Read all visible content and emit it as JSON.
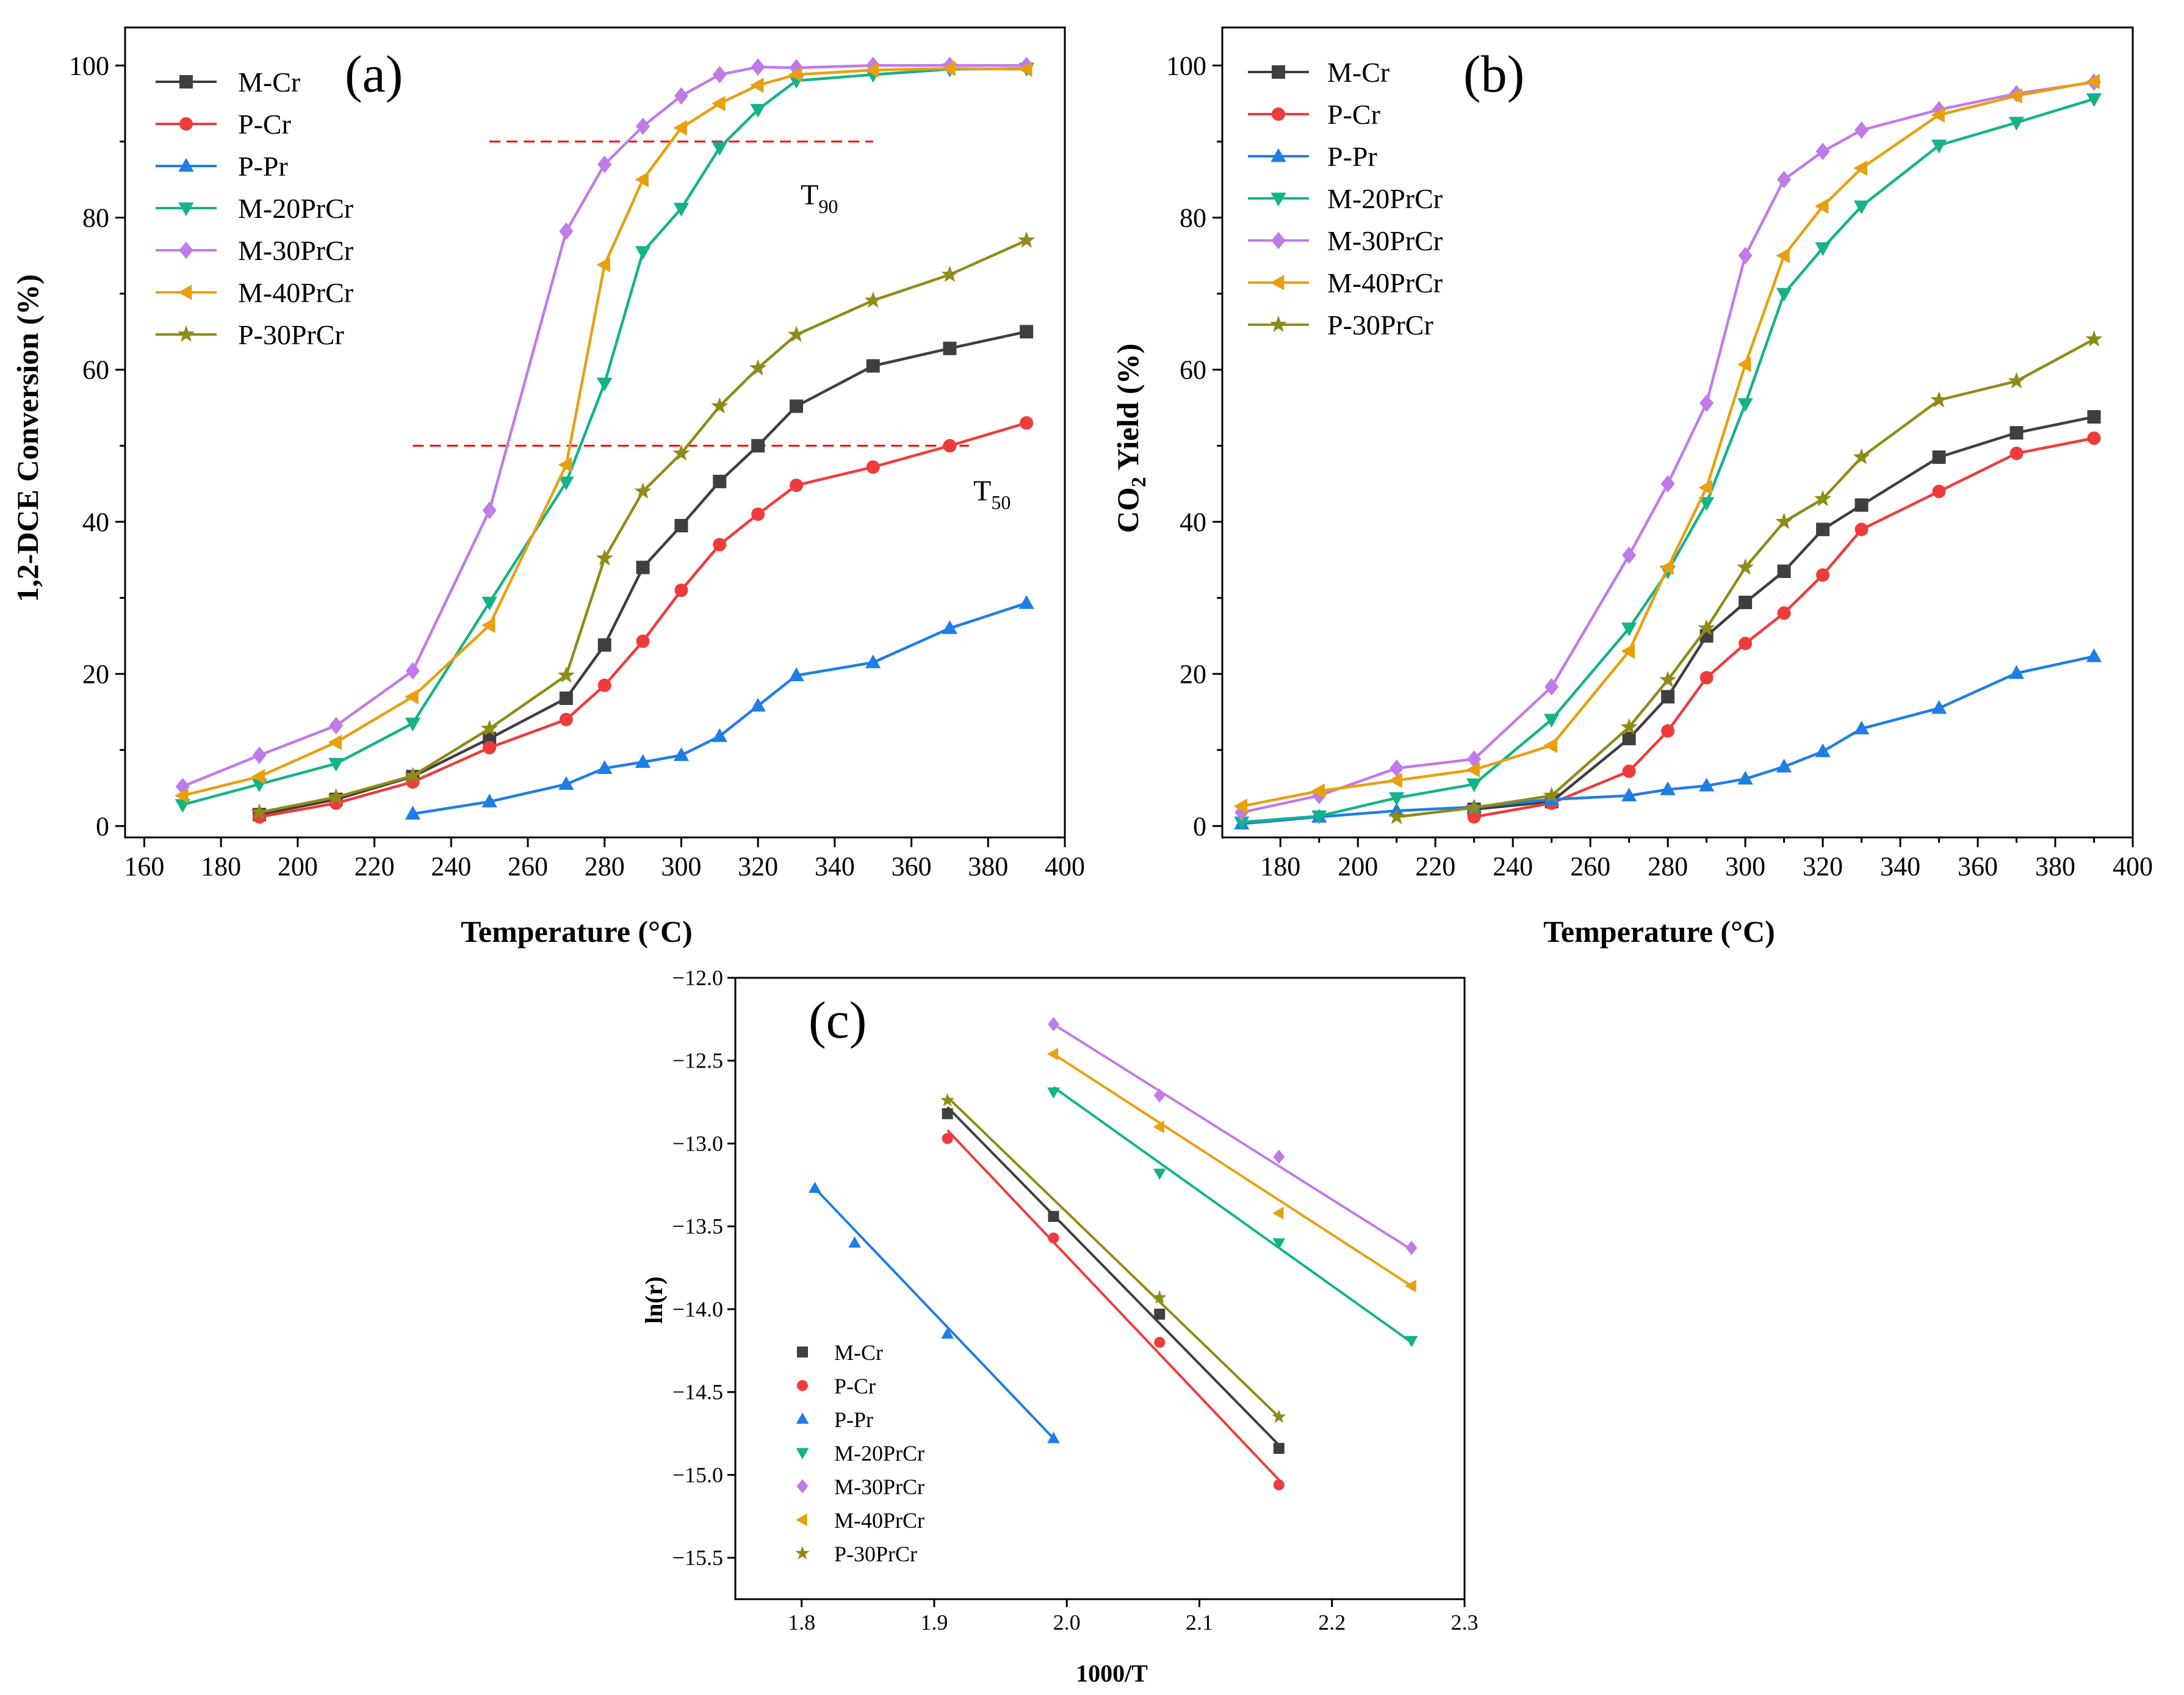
{
  "colors": {
    "M-Cr": "#3f3f3f",
    "P-Cr": "#ef3b3b",
    "P-Pr": "#1f7de6",
    "M-20PrCr": "#13b38a",
    "M-30PrCr": "#c07be8",
    "M-40PrCr": "#e8a010",
    "P-30PrCr": "#8f8b17",
    "threshold_line": "#ff0000"
  },
  "markers": {
    "M-Cr": "square",
    "P-Cr": "circle",
    "P-Pr": "triangle-up",
    "M-20PrCr": "triangle-down",
    "M-30PrCr": "diamond",
    "M-40PrCr": "triangle-left",
    "P-30PrCr": "star"
  },
  "chart_data": [
    {
      "id": "a",
      "type": "line",
      "panel_label": "(a)",
      "xlabel": "Temperature (°C)",
      "ylabel": "1,2-DCE Conversion (%)",
      "xlim": [
        155,
        400
      ],
      "ylim": [
        -1.5,
        105
      ],
      "xticks": [
        160,
        180,
        200,
        220,
        240,
        260,
        280,
        300,
        320,
        340,
        360,
        380,
        400
      ],
      "yticks": [
        0,
        20,
        40,
        60,
        80,
        100
      ],
      "legend_position": "top-left",
      "annotations": [
        {
          "text": "T",
          "sub": "90",
          "x": 295,
          "y": 83
        },
        {
          "text": "T",
          "sub": "50",
          "x": 375,
          "y": 42
        }
      ],
      "reference_lines": [
        {
          "y": 90,
          "x_range": [
            250,
            350
          ],
          "style": "dashed"
        },
        {
          "y": 50,
          "x_range": [
            230,
            375
          ],
          "style": "dashed"
        }
      ],
      "series": [
        {
          "name": "M-Cr",
          "x": [
            190,
            210,
            230,
            250,
            270,
            280,
            290,
            300,
            310,
            320,
            330,
            350,
            370,
            390
          ],
          "y": [
            1.5,
            3.5,
            6.5,
            11.5,
            16.8,
            23.8,
            34,
            39.5,
            45.3,
            50,
            55.2,
            60.5,
            62.8,
            65
          ]
        },
        {
          "name": "P-Cr",
          "x": [
            190,
            210,
            230,
            250,
            270,
            280,
            290,
            300,
            310,
            320,
            330,
            350,
            370,
            390
          ],
          "y": [
            1.2,
            3,
            5.8,
            10.3,
            14,
            18.5,
            24.3,
            31,
            37,
            41,
            44.8,
            47.2,
            50,
            53
          ]
        },
        {
          "name": "P-Pr",
          "x": [
            230,
            250,
            270,
            280,
            290,
            300,
            310,
            320,
            330,
            350,
            370,
            390
          ],
          "y": [
            1.6,
            3.2,
            5.5,
            7.6,
            8.4,
            9.3,
            11.8,
            15.8,
            19.8,
            21.5,
            26,
            29.3
          ]
        },
        {
          "name": "M-20PrCr",
          "x": [
            170,
            190,
            210,
            230,
            250,
            270,
            280,
            290,
            300,
            310,
            320,
            330,
            350,
            370,
            390
          ],
          "y": [
            2.8,
            5.5,
            8.2,
            13.5,
            29.4,
            45.2,
            58.2,
            75.5,
            81.2,
            89.2,
            94.2,
            98,
            98.8,
            99.5,
            99.6
          ]
        },
        {
          "name": "M-30PrCr",
          "x": [
            170,
            190,
            210,
            230,
            250,
            270,
            280,
            290,
            300,
            310,
            320,
            330,
            350,
            370,
            390
          ],
          "y": [
            5.2,
            9.3,
            13.2,
            20.4,
            41.5,
            78.2,
            87,
            92,
            96,
            98.8,
            99.8,
            99.7,
            100,
            100,
            100
          ]
        },
        {
          "name": "M-40PrCr",
          "x": [
            170,
            190,
            210,
            230,
            250,
            270,
            280,
            290,
            300,
            310,
            320,
            330,
            350,
            370,
            390
          ],
          "y": [
            4,
            6.5,
            11,
            17,
            26.4,
            47.5,
            73.8,
            85,
            91.8,
            95,
            97.4,
            98.8,
            99.4,
            99.6,
            99.5
          ]
        },
        {
          "name": "P-30PrCr",
          "x": [
            190,
            210,
            230,
            250,
            270,
            280,
            290,
            300,
            310,
            320,
            330,
            350,
            370,
            390
          ],
          "y": [
            1.8,
            3.8,
            6.6,
            12.8,
            19.8,
            35.2,
            44,
            49,
            55.2,
            60.2,
            64.6,
            69.1,
            72.5,
            77
          ]
        }
      ]
    },
    {
      "id": "b",
      "type": "line",
      "panel_label": "(b)",
      "xlabel": "Temperature (°C)",
      "ylabel_main": "CO",
      "ylabel_sub": "2",
      "ylabel_rest": " Yield (%)",
      "xlim": [
        165,
        400
      ],
      "ylim": [
        -1.5,
        105
      ],
      "xticks": [
        180,
        200,
        220,
        240,
        260,
        280,
        300,
        320,
        340,
        360,
        380,
        400
      ],
      "yticks": [
        0,
        20,
        40,
        60,
        80,
        100
      ],
      "legend_position": "top-left",
      "series": [
        {
          "name": "M-Cr",
          "x": [
            230,
            250,
            270,
            280,
            290,
            300,
            310,
            320,
            330,
            350,
            370,
            390
          ],
          "y": [
            2.2,
            3.2,
            11.5,
            17,
            25,
            29.4,
            33.5,
            39,
            42.2,
            48.5,
            51.7,
            53.8
          ]
        },
        {
          "name": "P-Cr",
          "x": [
            230,
            250,
            270,
            280,
            290,
            300,
            310,
            320,
            330,
            350,
            370,
            390
          ],
          "y": [
            1.2,
            3,
            7.2,
            12.5,
            19.5,
            24,
            28,
            33,
            39,
            44,
            49,
            51
          ]
        },
        {
          "name": "P-Pr",
          "x": [
            170,
            190,
            210,
            230,
            250,
            270,
            280,
            290,
            300,
            310,
            320,
            330,
            350,
            370,
            390
          ],
          "y": [
            0.3,
            1.2,
            2,
            2.5,
            3.5,
            4,
            4.8,
            5.3,
            6.2,
            7.8,
            9.8,
            12.8,
            15.5,
            20.1,
            22.3
          ]
        },
        {
          "name": "M-20PrCr",
          "x": [
            170,
            190,
            210,
            230,
            250,
            270,
            280,
            290,
            300,
            310,
            320,
            330,
            350,
            370,
            390
          ],
          "y": [
            0.5,
            1.3,
            3.7,
            5.5,
            14,
            26,
            33.5,
            42.5,
            55.5,
            70,
            76,
            81.5,
            89.5,
            92.5,
            95.6
          ]
        },
        {
          "name": "M-30PrCr",
          "x": [
            170,
            190,
            210,
            230,
            250,
            270,
            280,
            290,
            300,
            310,
            320,
            330,
            350,
            370,
            390
          ],
          "y": [
            1.8,
            4,
            7.6,
            8.8,
            18.3,
            35.6,
            45,
            55.6,
            75,
            85,
            88.7,
            91.5,
            94.2,
            96.3,
            97.8
          ]
        },
        {
          "name": "M-40PrCr",
          "x": [
            170,
            190,
            210,
            230,
            250,
            270,
            280,
            290,
            300,
            310,
            320,
            330,
            350,
            370,
            390
          ],
          "y": [
            2.6,
            4.6,
            6,
            7.4,
            10.6,
            23,
            34,
            44.5,
            60.7,
            75,
            81.5,
            86.5,
            93.5,
            96,
            97.9
          ]
        },
        {
          "name": "P-30PrCr",
          "x": [
            210,
            230,
            250,
            270,
            280,
            290,
            300,
            310,
            320,
            330,
            350,
            370,
            390
          ],
          "y": [
            1.2,
            2.4,
            4,
            13,
            19.2,
            26,
            34,
            40,
            43,
            48.5,
            56,
            58.5,
            64
          ]
        }
      ]
    },
    {
      "id": "c",
      "type": "scatter",
      "panel_label": "(c)",
      "xlabel": "1000/T",
      "ylabel": "ln(r)",
      "xlim": [
        1.75,
        2.3
      ],
      "ylim": [
        -15.75,
        -12.0
      ],
      "xticks": [
        1.8,
        1.9,
        2.0,
        2.1,
        2.2,
        2.3
      ],
      "xtick_labels": [
        "1.8",
        "1.9",
        "2.0",
        "2.1",
        "2.2",
        "2.3"
      ],
      "yticks": [
        -12.0,
        -12.5,
        -13.0,
        -13.5,
        -14.0,
        -14.5,
        -15.0,
        -15.5
      ],
      "ytick_labels": [
        "-12.0",
        "-12.5",
        "-13.0",
        "-13.5",
        "-14.0",
        "-14.5",
        "-15.0",
        "-15.5"
      ],
      "legend_position": "bottom-left",
      "series": [
        {
          "name": "M-Cr",
          "x": [
            1.91,
            1.99,
            2.07,
            2.16
          ],
          "y": [
            -12.82,
            -13.44,
            -14.03,
            -14.84
          ],
          "fit": [
            [
              1.91,
              -12.78
            ],
            [
              2.16,
              -14.82
            ]
          ]
        },
        {
          "name": "P-Cr",
          "x": [
            1.91,
            1.99,
            2.07,
            2.16
          ],
          "y": [
            -12.97,
            -13.57,
            -14.2,
            -15.06
          ],
          "fit": [
            [
              1.91,
              -12.92
            ],
            [
              2.16,
              -15.03
            ]
          ]
        },
        {
          "name": "P-Pr",
          "x": [
            1.81,
            1.84,
            1.91,
            1.99
          ],
          "y": [
            -13.27,
            -13.6,
            -14.15,
            -14.78
          ],
          "fit": [
            [
              1.81,
              -13.27
            ],
            [
              1.99,
              -14.78
            ]
          ]
        },
        {
          "name": "M-20PrCr",
          "x": [
            1.99,
            2.07,
            2.16,
            2.26
          ],
          "y": [
            -12.69,
            -13.18,
            -13.6,
            -14.19
          ],
          "fit": [
            [
              1.99,
              -12.66
            ],
            [
              2.26,
              -14.2
            ]
          ]
        },
        {
          "name": "M-30PrCr",
          "x": [
            1.99,
            2.07,
            2.16,
            2.26
          ],
          "y": [
            -12.28,
            -12.71,
            -13.08,
            -13.63
          ],
          "fit": [
            [
              1.99,
              -12.28
            ],
            [
              2.26,
              -13.64
            ]
          ]
        },
        {
          "name": "M-40PrCr",
          "x": [
            1.99,
            2.07,
            2.16,
            2.26
          ],
          "y": [
            -12.46,
            -12.9,
            -13.42,
            -13.86
          ],
          "fit": [
            [
              1.99,
              -12.46
            ],
            [
              2.26,
              -13.86
            ]
          ]
        },
        {
          "name": "P-30PrCr",
          "x": [
            1.91,
            2.07,
            2.16
          ],
          "y": [
            -12.74,
            -13.93,
            -14.65
          ],
          "fit": [
            [
              1.91,
              -12.72
            ],
            [
              2.16,
              -14.65
            ]
          ]
        }
      ]
    }
  ]
}
